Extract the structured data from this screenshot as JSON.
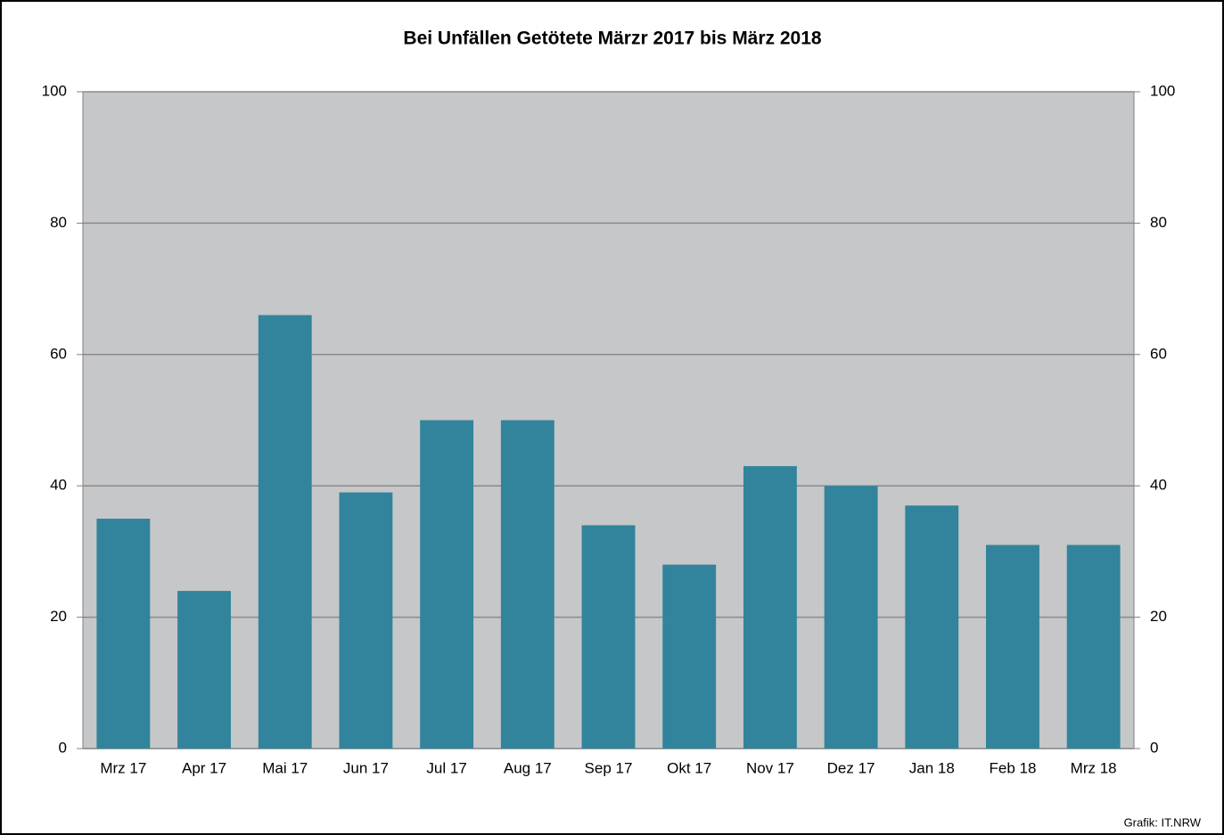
{
  "chart_data": {
    "type": "bar",
    "title": "Bei Unfällen Getötete Märzr 2017 bis März 2018",
    "categories": [
      "Mrz 17",
      "Apr 17",
      "Mai 17",
      "Jun 17",
      "Jul 17",
      "Aug 17",
      "Sep 17",
      "Okt 17",
      "Nov 17",
      "Dez 17",
      "Jan 18",
      "Feb 18",
      "Mrz 18"
    ],
    "values": [
      35,
      24,
      66,
      39,
      50,
      50,
      34,
      28,
      43,
      40,
      37,
      31,
      31
    ],
    "color": "#31849b",
    "ylim": [
      0,
      100
    ],
    "yticks": [
      0,
      20,
      40,
      60,
      80,
      100
    ],
    "y2lim": [
      0,
      100
    ],
    "y2ticks": [
      0,
      20,
      40,
      60,
      80,
      100
    ],
    "grid": true,
    "source": "Grafik: IT.NRW"
  }
}
